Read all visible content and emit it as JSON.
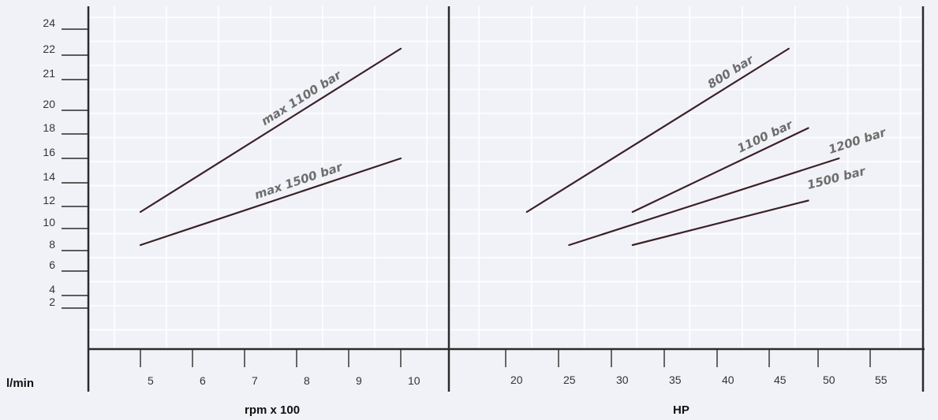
{
  "chart_data": [
    {
      "type": "line",
      "xlabel": "rpm x 100",
      "ylabel": "l/min",
      "xlim": [
        4,
        11
      ],
      "x_ticks": [
        "5",
        "6",
        "7",
        "8",
        "9",
        "10"
      ],
      "y_ticks": [
        "2",
        "4",
        "6",
        "8",
        "10",
        "12",
        "14",
        "16",
        "18",
        "20",
        "21",
        "22",
        "24"
      ],
      "grid": true,
      "series": [
        {
          "name": "max 1100 bar",
          "x": [
            5,
            10
          ],
          "y": [
            11.5,
            22.5
          ]
        },
        {
          "name": "max 1500 bar",
          "x": [
            5,
            10
          ],
          "y": [
            8.5,
            16
          ]
        }
      ]
    },
    {
      "type": "line",
      "xlabel": "HP",
      "ylabel": "",
      "xlim": [
        15,
        60
      ],
      "x_ticks": [
        "20",
        "25",
        "30",
        "35",
        "40",
        "45",
        "50",
        "55"
      ],
      "grid": true,
      "series": [
        {
          "name": "800 bar",
          "x": [
            22,
            47
          ],
          "y": [
            11.5,
            22.5
          ]
        },
        {
          "name": "1100 bar",
          "x": [
            32,
            49
          ],
          "y": [
            11.5,
            18.5
          ]
        },
        {
          "name": "1200 bar",
          "x": [
            26,
            52
          ],
          "y": [
            8.5,
            16
          ]
        },
        {
          "name": "1500 bar",
          "x": [
            32,
            49
          ],
          "y": [
            8.5,
            12.5
          ]
        }
      ]
    }
  ],
  "colors": {
    "background": "#f1f2f7",
    "grid": "#ffffff",
    "axis": "#2b2b2b",
    "series_line": "#3c2028",
    "label": "#6d6d6d"
  }
}
